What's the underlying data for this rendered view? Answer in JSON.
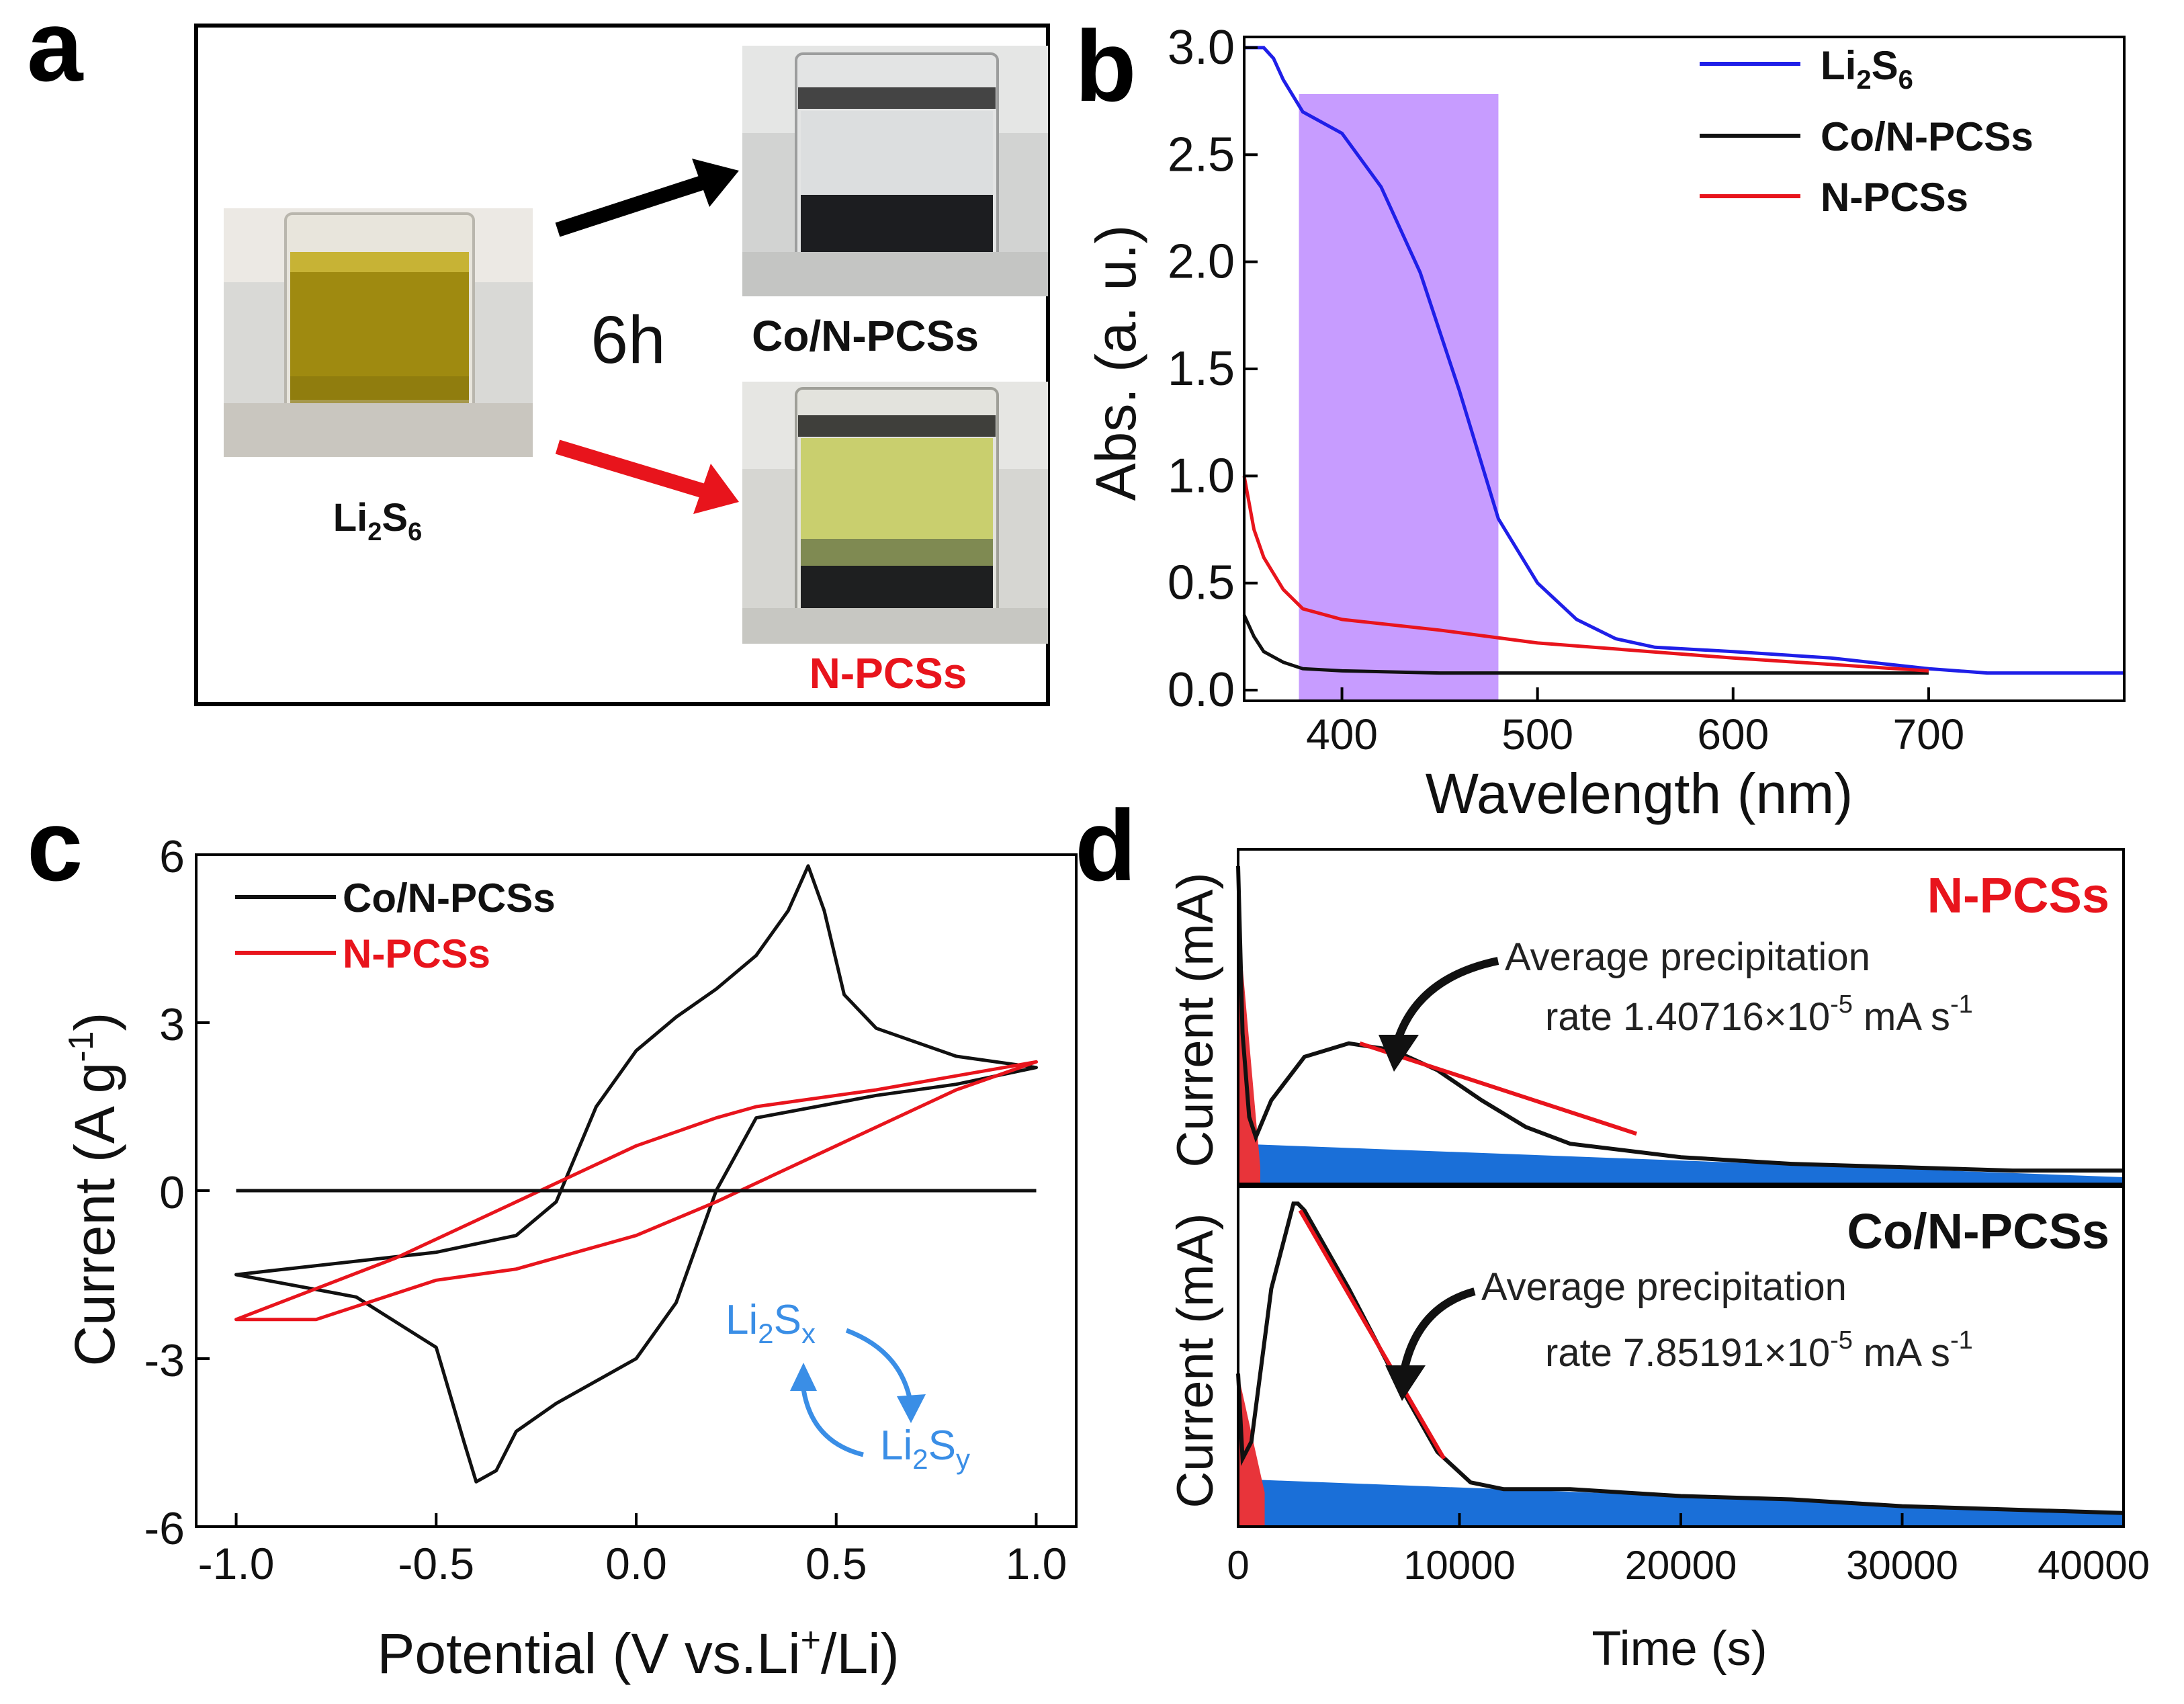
{
  "panels": {
    "a": {
      "letter": "a",
      "time_label": "6h",
      "source_label": {
        "base": "Li",
        "sub1": "2",
        "mid": "S",
        "sub2": "6"
      },
      "top_label": "Co/N-PCSs",
      "bottom_label": "N-PCSs"
    },
    "d_annotations": {
      "top_name": "N-PCSs",
      "top_note_line1": "Average precipitation",
      "top_note_line2": "rate 1.40716×10",
      "top_note_exp": "-5",
      "top_note_unit": " mA s",
      "top_note_unit_exp": "-1",
      "bottom_name": "Co/N-PCSs",
      "bottom_note_line1": "Average precipitation",
      "bottom_note_line2": "rate 7.85191×10",
      "bottom_note_exp": "-5",
      "bottom_note_unit": " mA s",
      "bottom_note_unit_exp": "-1",
      "inset_x": "x",
      "inset_y": "y"
    }
  },
  "colors": {
    "blue": "#1f1fe8",
    "black": "#111111",
    "red": "#e8141c",
    "purple": "#c79cff",
    "inset_blue": "#3a8ee6",
    "fill_blue": "#1a6fd8",
    "fill_red": "#e8343a"
  },
  "chart_data": [
    {
      "panel": "b",
      "letter": "b",
      "type": "line",
      "xlabel": "Wavelength (nm)",
      "ylabel": "Abs. (a. u.)",
      "xlim": [
        350,
        800
      ],
      "ylim": [
        -0.05,
        3.05
      ],
      "xticks": [
        "400",
        "500",
        "600",
        "700"
      ],
      "yticks": [
        "0.0",
        "0.5",
        "1.0",
        "1.5",
        "2.0",
        "2.5",
        "3.0"
      ],
      "highlight_band": [
        378,
        480
      ],
      "legend": {
        "placement": "top-right",
        "entries": [
          "Li2S6",
          "Co/N-PCSs",
          "N-PCSs"
        ]
      },
      "series": [
        {
          "name": "Li2S6",
          "x": [
            350,
            360,
            365,
            370,
            380,
            400,
            420,
            440,
            460,
            480,
            500,
            520,
            540,
            560,
            600,
            650,
            700,
            730,
            800
          ],
          "y": [
            3.0,
            3.0,
            2.95,
            2.85,
            2.7,
            2.6,
            2.35,
            1.95,
            1.4,
            0.8,
            0.5,
            0.33,
            0.24,
            0.2,
            0.18,
            0.15,
            0.1,
            0.08,
            0.08
          ]
        },
        {
          "name": "Co/N-PCSs",
          "x": [
            350,
            355,
            360,
            370,
            380,
            400,
            450,
            500,
            600,
            700
          ],
          "y": [
            0.35,
            0.25,
            0.18,
            0.13,
            0.1,
            0.09,
            0.08,
            0.08,
            0.08,
            0.08
          ]
        },
        {
          "name": "N-PCSs",
          "x": [
            350,
            355,
            360,
            370,
            380,
            400,
            450,
            500,
            600,
            700
          ],
          "y": [
            1.0,
            0.75,
            0.62,
            0.47,
            0.38,
            0.33,
            0.28,
            0.22,
            0.15,
            0.09
          ]
        }
      ]
    },
    {
      "panel": "c",
      "letter": "c",
      "type": "line",
      "xlabel": "Potential (V vs.Li",
      "xlabel_sup": "+",
      "xlabel_end": "/Li)",
      "ylabel": "Current (A g",
      "ylabel_sup": "-1",
      "ylabel_end": ")",
      "xlim": [
        -1.1,
        1.1
      ],
      "ylim": [
        -6,
        6
      ],
      "xticks": [
        "-1.0",
        "-0.5",
        "0.0",
        "0.5",
        "1.0"
      ],
      "yticks": [
        "-6",
        "-3",
        "0",
        "3",
        "6"
      ],
      "legend": {
        "placement": "top-left",
        "entries": [
          "Co/N-PCSs",
          "N-PCSs"
        ]
      },
      "series": [
        {
          "name": "Co/N-PCSs",
          "closed": true,
          "x": [
            -1.0,
            -0.5,
            -0.3,
            -0.2,
            -0.1,
            0.0,
            0.1,
            0.2,
            0.3,
            0.38,
            0.43,
            0.47,
            0.52,
            0.6,
            0.8,
            1.0,
            0.8,
            0.6,
            0.3,
            0.2,
            0.1,
            0.0,
            -0.1,
            -0.2,
            -0.3,
            -0.35,
            -0.4,
            -0.43,
            -0.5,
            -0.7,
            -1.0
          ],
          "y": [
            -1.5,
            -1.1,
            -0.8,
            -0.2,
            1.5,
            2.5,
            3.1,
            3.6,
            4.2,
            5.0,
            5.8,
            5.0,
            3.5,
            2.9,
            2.4,
            2.2,
            1.9,
            1.7,
            1.3,
            0.0,
            -2.0,
            -3.0,
            -3.4,
            -3.8,
            -4.3,
            -5.0,
            -5.2,
            -4.5,
            -2.8,
            -1.9,
            -1.5
          ]
        },
        {
          "name": "N-PCSs",
          "closed": true,
          "x": [
            -1.0,
            -0.6,
            -0.3,
            0.0,
            0.2,
            0.3,
            0.6,
            1.0,
            0.8,
            0.5,
            0.2,
            0.0,
            -0.3,
            -0.5,
            -0.8,
            -1.0
          ],
          "y": [
            -2.3,
            -1.2,
            -0.2,
            0.8,
            1.3,
            1.5,
            1.8,
            2.3,
            1.8,
            0.8,
            -0.2,
            -0.8,
            -1.4,
            -1.6,
            -2.3,
            -2.3
          ]
        },
        {
          "name": "zero line",
          "x": [
            -1.0,
            1.0
          ],
          "y": [
            0,
            0
          ]
        }
      ]
    },
    {
      "panel": "d-top",
      "letter": "d",
      "type": "area",
      "xlabel": "",
      "ylabel": "Current (mA)",
      "xlim": [
        0,
        40000
      ],
      "ylim": [
        0,
        1.0
      ],
      "series": [
        {
          "name": "N-PCSs",
          "x": [
            0,
            200,
            500,
            800,
            1500,
            3000,
            5000,
            7000,
            9000,
            11000,
            13000,
            15000,
            20000,
            25000,
            30000,
            35000,
            40000
          ],
          "y": [
            0.95,
            0.45,
            0.2,
            0.14,
            0.25,
            0.38,
            0.42,
            0.4,
            0.34,
            0.25,
            0.17,
            0.12,
            0.08,
            0.06,
            0.05,
            0.04,
            0.04
          ]
        },
        {
          "name": "precipitation fit",
          "x": [
            5500,
            18000
          ],
          "y": [
            0.42,
            0.15
          ]
        },
        {
          "name": "baseline (blue fill)",
          "x": [
            0,
            40000
          ],
          "y": [
            0.12,
            0.02
          ]
        },
        {
          "name": "initial (red fill)",
          "x": [
            0,
            1000
          ],
          "y": [
            0.8,
            0.05
          ]
        }
      ]
    },
    {
      "panel": "d-bottom",
      "type": "area",
      "xlabel": "Time (s)",
      "ylabel": "Current (mA)",
      "xlim": [
        0,
        40000
      ],
      "ylim": [
        0,
        1.0
      ],
      "xticks": [
        "0",
        "10000",
        "20000",
        "30000",
        "40000"
      ],
      "series": [
        {
          "name": "Co/N-PCSs",
          "x": [
            0,
            200,
            600,
            1500,
            2500,
            2700,
            3000,
            5000,
            7000,
            9000,
            10500,
            12000,
            15000,
            20000,
            25000,
            30000,
            35000,
            40000
          ],
          "y": [
            0.45,
            0.2,
            0.25,
            0.7,
            0.95,
            0.95,
            0.93,
            0.7,
            0.45,
            0.22,
            0.13,
            0.11,
            0.11,
            0.09,
            0.08,
            0.06,
            0.05,
            0.04
          ]
        },
        {
          "name": "precipitation fit",
          "x": [
            2800,
            9300
          ],
          "y": [
            0.93,
            0.2
          ]
        },
        {
          "name": "baseline (blue fill)",
          "x": [
            0,
            40000
          ],
          "y": [
            0.14,
            0.04
          ]
        },
        {
          "name": "initial (red fill)",
          "x": [
            0,
            1200
          ],
          "y": [
            0.45,
            0.1
          ]
        }
      ]
    }
  ]
}
